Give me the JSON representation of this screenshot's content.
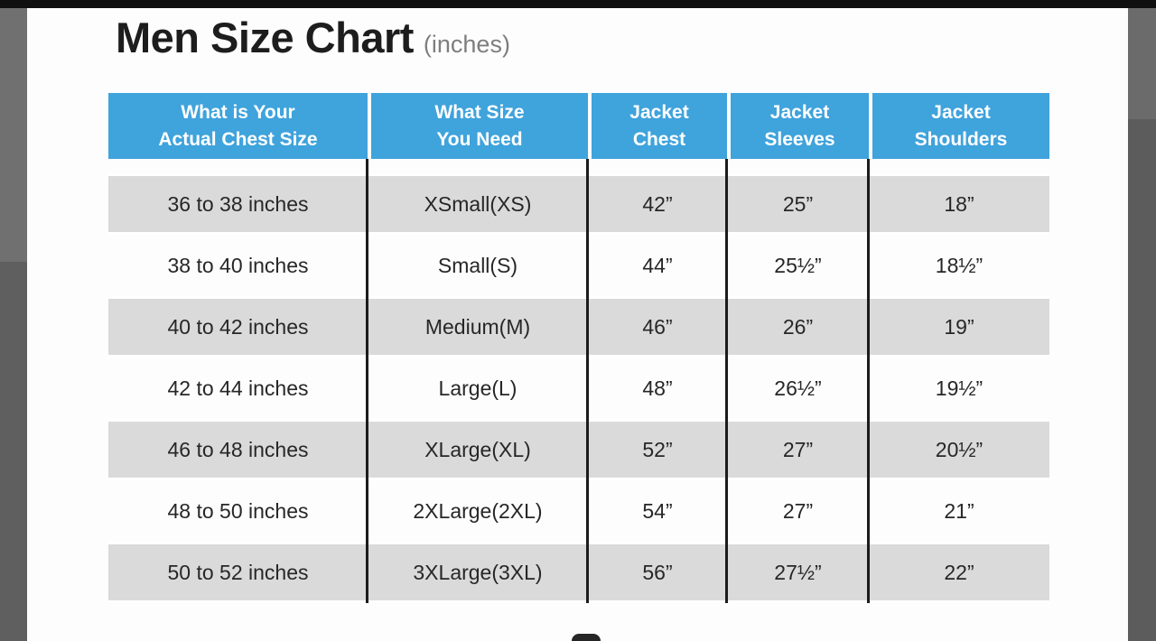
{
  "colors": {
    "header_bg": "#3fa3dc",
    "header_text": "#ffffff",
    "row_alt_bg": "#dadada",
    "body_rule": "#1c1c1c",
    "frame_side": "#686868",
    "frame_top": "#101010"
  },
  "title": {
    "text": "Men Size Chart",
    "note": "(inches)"
  },
  "chart_data": {
    "type": "table",
    "title": "Men Size Chart",
    "units": "inches",
    "legend_position": "none",
    "columns": [
      {
        "line1": "What is Your",
        "line2": "Actual Chest Size"
      },
      {
        "line1": "What Size",
        "line2": "You Need"
      },
      {
        "line1": "Jacket",
        "line2": "Chest"
      },
      {
        "line1": "Jacket",
        "line2": "Sleeves"
      },
      {
        "line1": "Jacket",
        "line2": "Shoulders"
      }
    ],
    "rows": [
      {
        "chest_range": "36 to 38 inches",
        "size": "XSmall(XS)",
        "jacket_chest": "42”",
        "jacket_sleeves": "25”",
        "jacket_shoulders": "18”"
      },
      {
        "chest_range": "38 to 40 inches",
        "size": "Small(S)",
        "jacket_chest": "44”",
        "jacket_sleeves": "25½”",
        "jacket_shoulders": "18½”"
      },
      {
        "chest_range": "40 to 42 inches",
        "size": "Medium(M)",
        "jacket_chest": "46”",
        "jacket_sleeves": "26”",
        "jacket_shoulders": "19”"
      },
      {
        "chest_range": "42 to 44 inches",
        "size": "Large(L)",
        "jacket_chest": "48”",
        "jacket_sleeves": "26½”",
        "jacket_shoulders": "19½”"
      },
      {
        "chest_range": "46 to 48 inches",
        "size": "XLarge(XL)",
        "jacket_chest": "52”",
        "jacket_sleeves": "27”",
        "jacket_shoulders": "20½”"
      },
      {
        "chest_range": "48 to 50 inches",
        "size": "2XLarge(2XL)",
        "jacket_chest": "54”",
        "jacket_sleeves": "27”",
        "jacket_shoulders": "21”"
      },
      {
        "chest_range": "50 to 52 inches",
        "size": "3XLarge(3XL)",
        "jacket_chest": "56”",
        "jacket_sleeves": "27½”",
        "jacket_shoulders": "22”"
      }
    ]
  }
}
